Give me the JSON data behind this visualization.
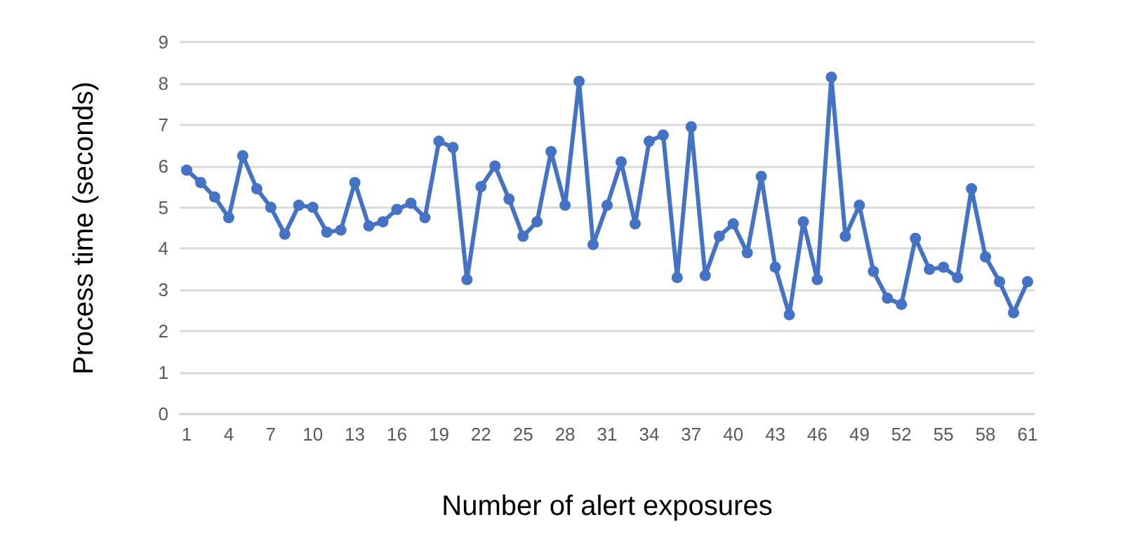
{
  "chart_data": {
    "type": "line",
    "xlabel": "Number of alert exposures",
    "ylabel": "Process time (seconds)",
    "categories": [
      "1",
      null,
      null,
      "4",
      null,
      null,
      "7",
      null,
      null,
      "10",
      null,
      null,
      "13",
      null,
      null,
      "16",
      null,
      null,
      "19",
      null,
      null,
      "22",
      null,
      null,
      "25",
      null,
      null,
      "28",
      null,
      null,
      "31",
      null,
      null,
      "34",
      null,
      null,
      "37",
      null,
      null,
      "40",
      null,
      null,
      "43",
      null,
      null,
      "46",
      null,
      null,
      "49",
      null,
      null,
      "52",
      null,
      null,
      "55",
      null,
      null,
      "58",
      null,
      null,
      "61"
    ],
    "series": [
      {
        "color": "#4472c4",
        "values": [
          5.9,
          5.6,
          5.25,
          4.75,
          6.25,
          5.45,
          5.0,
          4.35,
          5.05,
          5.0,
          4.4,
          4.45,
          5.6,
          4.55,
          4.65,
          4.95,
          5.1,
          4.75,
          6.6,
          6.45,
          3.25,
          5.5,
          6.0,
          5.2,
          4.3,
          4.65,
          6.35,
          5.05,
          8.05,
          4.1,
          5.05,
          6.1,
          4.6,
          6.6,
          6.75,
          3.3,
          6.95,
          3.35,
          4.3,
          4.6,
          3.9,
          5.75,
          3.55,
          2.4,
          4.65,
          3.25,
          8.15,
          4.3,
          5.05,
          3.45,
          2.8,
          2.65,
          4.25,
          3.5,
          3.55,
          3.3,
          5.45,
          3.8,
          3.2,
          2.45,
          3.2
        ]
      }
    ],
    "ylim": [
      0,
      9
    ],
    "yticks": [
      0,
      1,
      2,
      3,
      4,
      5,
      6,
      7,
      8,
      9
    ],
    "grid": "y",
    "marker": "circle",
    "line_style": "solid"
  }
}
